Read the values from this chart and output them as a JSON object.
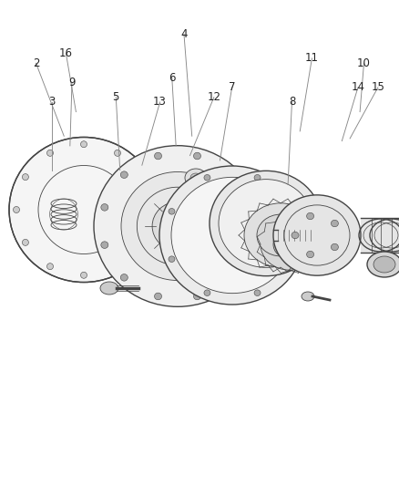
{
  "bg_color": "#ffffff",
  "line_color": "#444444",
  "label_color": "#222222",
  "fig_width": 4.39,
  "fig_height": 5.33,
  "dpi": 100,
  "leaders": {
    "2": {
      "lpos": [
        0.09,
        0.87
      ],
      "tpos": [
        0.16,
        0.72
      ]
    },
    "3": {
      "lpos": [
        0.13,
        0.79
      ],
      "tpos": [
        0.13,
        0.65
      ]
    },
    "4": {
      "lpos": [
        0.46,
        0.93
      ],
      "tpos": [
        0.48,
        0.72
      ]
    },
    "5": {
      "lpos": [
        0.29,
        0.8
      ],
      "tpos": [
        0.3,
        0.65
      ]
    },
    "6": {
      "lpos": [
        0.43,
        0.84
      ],
      "tpos": [
        0.44,
        0.7
      ]
    },
    "7": {
      "lpos": [
        0.58,
        0.82
      ],
      "tpos": [
        0.55,
        0.67
      ]
    },
    "8": {
      "lpos": [
        0.73,
        0.79
      ],
      "tpos": [
        0.72,
        0.62
      ]
    },
    "9": {
      "lpos": [
        0.18,
        0.83
      ],
      "tpos": [
        0.175,
        0.7
      ]
    },
    "10": {
      "lpos": [
        0.91,
        0.87
      ],
      "tpos": [
        0.9,
        0.77
      ]
    },
    "11": {
      "lpos": [
        0.78,
        0.88
      ],
      "tpos": [
        0.75,
        0.73
      ]
    },
    "12": {
      "lpos": [
        0.535,
        0.8
      ],
      "tpos": [
        0.475,
        0.68
      ]
    },
    "13": {
      "lpos": [
        0.4,
        0.79
      ],
      "tpos": [
        0.355,
        0.66
      ]
    },
    "14": {
      "lpos": [
        0.895,
        0.82
      ],
      "tpos": [
        0.855,
        0.71
      ]
    },
    "15": {
      "lpos": [
        0.945,
        0.82
      ],
      "tpos": [
        0.875,
        0.715
      ]
    },
    "16": {
      "lpos": [
        0.165,
        0.89
      ],
      "tpos": [
        0.19,
        0.77
      ]
    }
  },
  "label_fontsize": 8.5
}
